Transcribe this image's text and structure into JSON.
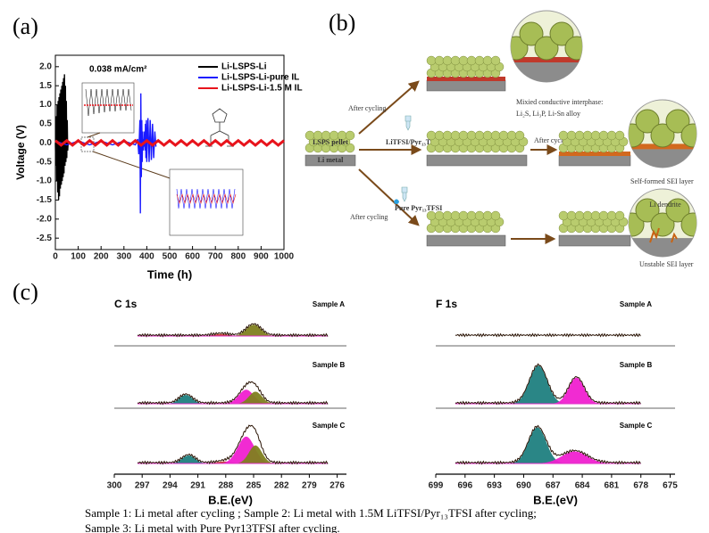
{
  "panel_labels": [
    "(a)",
    "(b)",
    "(c)"
  ],
  "chart_data": [
    {
      "type": "line",
      "xlabel": "Time (h)",
      "ylabel": "Voltage (V)",
      "annotation": "0.038 mA/cm²",
      "xlim": [
        0,
        1000
      ],
      "xticks": [
        0,
        100,
        200,
        300,
        400,
        500,
        600,
        700,
        800,
        900,
        1000
      ],
      "ylim": [
        -2.8,
        2.3
      ],
      "yticks": [
        {
          "value": 2,
          "label": "2.0"
        },
        {
          "value": 1.5,
          "label": "1.5"
        },
        {
          "value": 1,
          "label": "1.0"
        },
        {
          "value": 0.5,
          "label": "0.5"
        },
        {
          "value": 0,
          "label": "0.0"
        },
        {
          "value": -0.5,
          "label": "-0.5"
        },
        {
          "value": -1,
          "label": "-1.0"
        },
        {
          "value": -1.5,
          "label": "-1.5"
        },
        {
          "value": -2,
          "label": "-2.0"
        },
        {
          "value": -2.5,
          "label": "-2.5"
        }
      ],
      "series": [
        {
          "name": "Li-LSPS-Li",
          "color": "#000000",
          "x": [
            0,
            2,
            4,
            6,
            8,
            10,
            12,
            14,
            16,
            18,
            20,
            22,
            24,
            26,
            28,
            30,
            32,
            34,
            36,
            38,
            40,
            42,
            44,
            46,
            48,
            50,
            52,
            54,
            56
          ],
          "values": [
            0,
            -0.6,
            0.7,
            -1.0,
            1.0,
            -1.3,
            1.1,
            -1.5,
            1.2,
            -1.4,
            1.3,
            -1.2,
            1.4,
            -1.1,
            1.5,
            -1.0,
            1.6,
            -0.9,
            1.7,
            -0.8,
            1.8,
            -0.6,
            1.5,
            -0.5,
            1.1,
            -0.4,
            0.6,
            -0.2,
            0
          ]
        },
        {
          "name": "Li-LSPS-Li-pure IL",
          "color": "#1a1aff",
          "x": [
            0,
            50,
            100,
            150,
            200,
            250,
            300,
            350,
            360,
            365,
            370,
            372,
            374,
            376,
            378,
            380,
            382,
            384,
            386,
            388,
            390,
            392,
            394,
            396,
            398,
            400,
            405,
            410,
            415,
            420,
            425,
            430,
            435,
            440
          ],
          "values": [
            0.05,
            -0.05,
            0.05,
            -0.05,
            0.05,
            -0.05,
            0.05,
            -0.05,
            0.1,
            -0.3,
            0.6,
            -1.85,
            1.3,
            -0.9,
            0.6,
            -0.5,
            0.3,
            -0.2,
            0.1,
            -0.1,
            0.3,
            -0.2,
            0.5,
            -0.4,
            0.6,
            -0.5,
            0.65,
            -0.5,
            0.6,
            -0.45,
            0.5,
            -0.4,
            0.3,
            -0.1
          ]
        },
        {
          "name": "Li-LSPS-Li-1.5 M IL",
          "color": "#e8141c",
          "x": [
            0,
            25,
            50,
            75,
            100,
            125,
            150,
            175,
            200,
            225,
            250,
            275,
            300,
            325,
            350,
            375,
            400,
            425,
            450,
            475,
            500,
            525,
            550,
            575,
            600,
            625,
            650,
            675,
            700,
            725,
            750,
            775,
            800,
            825,
            850,
            875,
            900,
            925,
            950,
            975,
            1000
          ],
          "values": [
            0.06,
            -0.06,
            0.06,
            -0.06,
            0.06,
            -0.06,
            0.06,
            -0.06,
            0.06,
            -0.06,
            0.06,
            -0.06,
            0.06,
            -0.06,
            0.06,
            -0.06,
            0.06,
            -0.06,
            0.06,
            -0.06,
            0.06,
            -0.06,
            0.06,
            -0.06,
            0.06,
            -0.06,
            0.06,
            -0.06,
            0.06,
            -0.06,
            0.06,
            -0.06,
            0.06,
            -0.06,
            0.06,
            -0.06,
            0.06,
            -0.06,
            0.06,
            -0.06,
            0.06
          ]
        }
      ]
    },
    {
      "type": "spectra",
      "title": "C 1s",
      "xlabel": "B.E.(eV)",
      "xlim": [
        300,
        275
      ],
      "xticks": [
        300,
        297,
        294,
        291,
        288,
        285,
        282,
        279,
        276
      ],
      "data_range": [
        297.5,
        277
      ],
      "panels": [
        {
          "label": "Sample A",
          "peaks": [
            {
              "center": 288.5,
              "height": 0.05,
              "width": 0.8,
              "color": "#c0392b"
            },
            {
              "center": 285,
              "height": 0.28,
              "width": 0.8,
              "color": "#7f7f1f"
            }
          ]
        },
        {
          "label": "Sample B",
          "peaks": [
            {
              "center": 292.3,
              "height": 0.22,
              "width": 0.7,
              "color": "#1f7f7f"
            },
            {
              "center": 285.8,
              "height": 0.35,
              "width": 0.8,
              "color": "#f020d0"
            },
            {
              "center": 284.8,
              "height": 0.3,
              "width": 0.7,
              "color": "#7f7f1f"
            }
          ]
        },
        {
          "label": "Sample C",
          "peaks": [
            {
              "center": 292,
              "height": 0.2,
              "width": 0.7,
              "color": "#1f7f7f"
            },
            {
              "center": 288.2,
              "height": 0.05,
              "width": 0.8,
              "color": "#c0392b"
            },
            {
              "center": 285.8,
              "height": 0.67,
              "width": 0.9,
              "color": "#f020d0"
            },
            {
              "center": 284.8,
              "height": 0.45,
              "width": 0.7,
              "color": "#7f7f1f"
            }
          ]
        }
      ]
    },
    {
      "type": "spectra",
      "title": "F 1s",
      "xlabel": "B.E.(eV)",
      "xlim": [
        699,
        674.5
      ],
      "xticks": [
        699,
        696,
        693,
        690,
        687,
        684,
        681,
        678,
        675
      ],
      "data_range": [
        697,
        678
      ],
      "panels": [
        {
          "label": "Sample A",
          "peaks": []
        },
        {
          "label": "Sample B",
          "peaks": [
            {
              "center": 688.5,
              "height": 0.95,
              "width": 0.9,
              "color": "#1f7f7f"
            },
            {
              "center": 684.6,
              "height": 0.65,
              "width": 0.8,
              "color": "#f020d0"
            }
          ]
        },
        {
          "label": "Sample C",
          "peaks": [
            {
              "center": 688.6,
              "height": 0.9,
              "width": 0.9,
              "color": "#1f7f7f"
            },
            {
              "center": 684.8,
              "height": 0.3,
              "width": 1.3,
              "color": "#f020d0"
            }
          ]
        }
      ]
    }
  ],
  "diagram": {
    "after_cycling_top": "After cycling",
    "interphase_title": "Mixied conductive interphase:",
    "interphase_species": "Li₂S, Li₃P, Li-Sn alloy",
    "pellet": "LSPS pellet",
    "metal": "Li metal",
    "electrolyte_1": "LiTFSI/Pyr₁₃TFSI",
    "after_cycling_middle": "After cycling",
    "sei_stable": "Self-formed SEI layer",
    "electrolyte_2": "Pure Pyr₁₃TFSI",
    "after_cycling_bottom": "After cycling",
    "dendrite": "Li dendrite",
    "sei_unstable": "Unstable SEI layer"
  },
  "caption": [
    "Sample 1:  Li metal after cycling    ;    Sample 2:  Li metal with 1.5M LiTFSI/Pyr₁₃TFSI after cycling;",
    "Sample 3:  Li metal with Pure Pyr13TFSI after cycling."
  ]
}
